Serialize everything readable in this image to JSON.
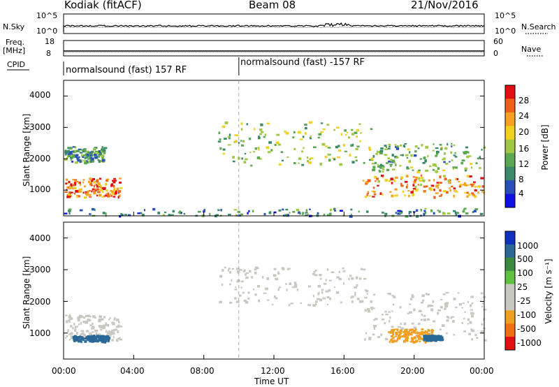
{
  "header": {
    "station": "Kodiak (fitACF)",
    "beam": "Beam 08",
    "date": "21/Nov/2016"
  },
  "strips": {
    "nsky_label": "N.Sky",
    "nsky_ticks": [
      "10^5",
      "10^0"
    ],
    "nsearch_label": "N.Search",
    "nsearch_ticks": [
      "10^5",
      "10^0"
    ],
    "freq_label": "Freq.",
    "freq_unit": "[MHz]",
    "freq_ticks": [
      "18",
      "8"
    ],
    "nave_label": "Nave",
    "nave_ticks": [
      "60",
      "0"
    ],
    "cpid_label": "CPID",
    "cpid_segments": [
      {
        "text": "normalsound (fast) 157 RF",
        "start_hour": 0
      },
      {
        "text": "normalsound (fast) -157 RF",
        "start_hour": 10
      }
    ]
  },
  "chart_data": [
    {
      "type": "heatmap",
      "ylabel": "Slant Range [km]",
      "yticks": [
        "4000",
        "3000",
        "2000",
        "1000"
      ],
      "ylim": [
        180,
        4500
      ],
      "colorbar": {
        "label": "Power [dB]",
        "ticks": [
          "28",
          "24",
          "20",
          "16",
          "12",
          "8",
          "4"
        ],
        "range": [
          0,
          30
        ],
        "colors": [
          "#1010e0",
          "#2850b8",
          "#3a8a6a",
          "#5aa850",
          "#a0c840",
          "#f0d020",
          "#f8a020",
          "#f06018",
          "#e01010"
        ]
      },
      "echo_regions": [
        {
          "t0": 0.0,
          "t1": 3.2,
          "r0": 800,
          "r1": 1400,
          "power": 24
        },
        {
          "t0": 0.0,
          "t1": 2.3,
          "r0": 1900,
          "r1": 2400,
          "power": 10
        },
        {
          "t0": 8.8,
          "t1": 17.5,
          "r0": 1800,
          "r1": 3200,
          "power": 14
        },
        {
          "t0": 17.0,
          "t1": 24.0,
          "r0": 800,
          "r1": 1500,
          "power": 22
        },
        {
          "t0": 17.5,
          "t1": 24.0,
          "r0": 1600,
          "r1": 2500,
          "power": 12
        },
        {
          "t0": 0.0,
          "t1": 24.0,
          "r0": 200,
          "r1": 450,
          "power": 8
        }
      ]
    },
    {
      "type": "heatmap",
      "ylabel": "Slant Range [km]",
      "yticks": [
        "4000",
        "3000",
        "2000",
        "1000"
      ],
      "ylim": [
        180,
        4500
      ],
      "colorbar": {
        "label": "Velocity [m s⁻¹]",
        "ticks": [
          "1000",
          "500",
          "100",
          "25",
          "-25",
          "-100",
          "-500",
          "-1000"
        ],
        "colors": [
          "#1030c0",
          "#2a6898",
          "#3a8a40",
          "#60c040",
          "#c8c8c0",
          "#c8c8c0",
          "#f0a020",
          "#f07010",
          "#e01010"
        ]
      },
      "echo_regions": [
        {
          "t0": 0.0,
          "t1": 3.2,
          "r0": 800,
          "r1": 1600,
          "velocity": 0
        },
        {
          "t0": 8.8,
          "t1": 17.5,
          "r0": 1900,
          "r1": 3100,
          "velocity": 0
        },
        {
          "t0": 17.0,
          "t1": 24.0,
          "r0": 800,
          "r1": 2300,
          "velocity": 0
        },
        {
          "t0": 18.5,
          "t1": 21.0,
          "r0": 750,
          "r1": 1150,
          "velocity": -200
        },
        {
          "t0": 20.5,
          "t1": 21.5,
          "r0": 800,
          "r1": 950,
          "velocity": 300
        },
        {
          "t0": 0.5,
          "t1": 2.5,
          "r0": 750,
          "r1": 950,
          "velocity": 300
        }
      ]
    }
  ],
  "x_axis": {
    "ticks": [
      "00:00",
      "04:00",
      "08:00",
      "12:00",
      "16:00",
      "20:00",
      "00:00"
    ],
    "label": "Time UT"
  }
}
